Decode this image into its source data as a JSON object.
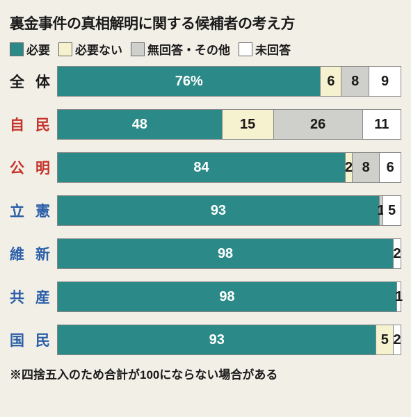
{
  "title": "裏金事件の真相解明に関する候補者の考え方",
  "legend": [
    {
      "label": "必要",
      "color": "#2b8a87"
    },
    {
      "label": "必要ない",
      "color": "#f6f1cf"
    },
    {
      "label": "無回答・その他",
      "color": "#cfcfcb"
    },
    {
      "label": "未回答",
      "color": "#ffffff"
    }
  ],
  "label_colors": {
    "default": "#1a1a1a",
    "ldp": "#c4332a",
    "opp": "#2b5fa8"
  },
  "seg_text_colors": {
    "on_teal": "#ffffff",
    "on_light": "#1a1a1a"
  },
  "rows": [
    {
      "name": "全体",
      "name_chars": [
        "全",
        "体"
      ],
      "label_color_key": "default",
      "segments": [
        {
          "value": 76,
          "display": "76%",
          "color_idx": 0,
          "text_key": "on_teal"
        },
        {
          "value": 6,
          "display": "6",
          "color_idx": 1,
          "text_key": "on_light"
        },
        {
          "value": 8,
          "display": "8",
          "color_idx": 2,
          "text_key": "on_light"
        },
        {
          "value": 9,
          "display": "9",
          "color_idx": 3,
          "text_key": "on_light"
        }
      ]
    },
    {
      "name": "自民",
      "name_chars": [
        "自",
        "民"
      ],
      "label_color_key": "ldp",
      "segments": [
        {
          "value": 48,
          "display": "48",
          "color_idx": 0,
          "text_key": "on_teal"
        },
        {
          "value": 15,
          "display": "15",
          "color_idx": 1,
          "text_key": "on_light"
        },
        {
          "value": 26,
          "display": "26",
          "color_idx": 2,
          "text_key": "on_light"
        },
        {
          "value": 11,
          "display": "11",
          "color_idx": 3,
          "text_key": "on_light"
        }
      ]
    },
    {
      "name": "公明",
      "name_chars": [
        "公",
        "明"
      ],
      "label_color_key": "ldp",
      "segments": [
        {
          "value": 84,
          "display": "84",
          "color_idx": 0,
          "text_key": "on_teal"
        },
        {
          "value": 2,
          "display": "2",
          "color_idx": 1,
          "text_key": "on_light",
          "ext": true
        },
        {
          "value": 8,
          "display": "8",
          "color_idx": 2,
          "text_key": "on_light"
        },
        {
          "value": 6,
          "display": "6",
          "color_idx": 3,
          "text_key": "on_light"
        }
      ]
    },
    {
      "name": "立憲",
      "name_chars": [
        "立",
        "憲"
      ],
      "label_color_key": "opp",
      "segments": [
        {
          "value": 93,
          "display": "93",
          "color_idx": 0,
          "text_key": "on_teal"
        },
        {
          "value": 1,
          "display": "1",
          "color_idx": 2,
          "text_key": "on_light",
          "ext": true
        },
        {
          "value": 5,
          "display": "5",
          "color_idx": 3,
          "text_key": "on_light"
        }
      ]
    },
    {
      "name": "維新",
      "name_chars": [
        "維",
        "新"
      ],
      "label_color_key": "opp",
      "segments": [
        {
          "value": 98,
          "display": "98",
          "color_idx": 0,
          "text_key": "on_teal"
        },
        {
          "value": 2,
          "display": "2",
          "color_idx": 3,
          "text_key": "on_light",
          "ext": true
        }
      ]
    },
    {
      "name": "共産",
      "name_chars": [
        "共",
        "産"
      ],
      "label_color_key": "opp",
      "segments": [
        {
          "value": 98,
          "display": "98",
          "color_idx": 0,
          "text_key": "on_teal"
        },
        {
          "value": 1,
          "display": "1",
          "color_idx": 3,
          "text_key": "on_light",
          "ext": true
        }
      ]
    },
    {
      "name": "国民",
      "name_chars": [
        "国",
        "民"
      ],
      "label_color_key": "opp",
      "segments": [
        {
          "value": 93,
          "display": "93",
          "color_idx": 0,
          "text_key": "on_teal"
        },
        {
          "value": 5,
          "display": "5",
          "color_idx": 1,
          "text_key": "on_light"
        },
        {
          "value": 2,
          "display": "2",
          "color_idx": 3,
          "text_key": "on_light",
          "ext": true
        }
      ]
    }
  ],
  "footnote": "※四捨五入のため合計が100にならない場合がある",
  "background_color": "#f2efe7",
  "bar_border_color": "#888888"
}
